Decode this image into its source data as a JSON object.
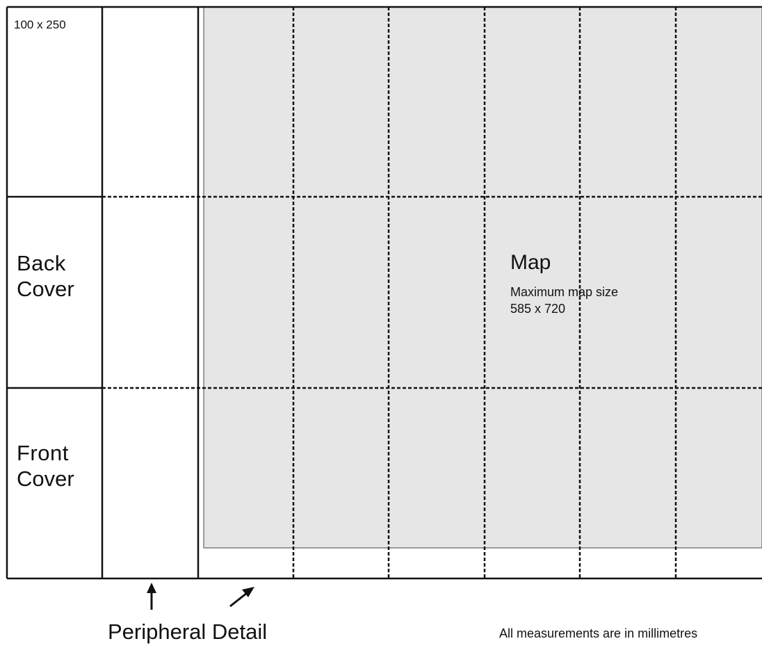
{
  "page_size_label": "100 x 250",
  "back_cover": {
    "line1": "Back",
    "line2": "Cover"
  },
  "front_cover": {
    "line1": "Front",
    "line2": "Cover"
  },
  "map": {
    "title": "Map",
    "subtitle_line1": "Maximum map size",
    "subtitle_line2": "585 x 720"
  },
  "peripheral_label": "Peripheral Detail",
  "measurement_note": "All measurements are in millimetres",
  "colors": {
    "map_fill": "#e6e6e6",
    "line": "#111111",
    "background": "#ffffff"
  },
  "icons": [
    "up-arrow-icon",
    "diagonal-arrow-icon"
  ]
}
